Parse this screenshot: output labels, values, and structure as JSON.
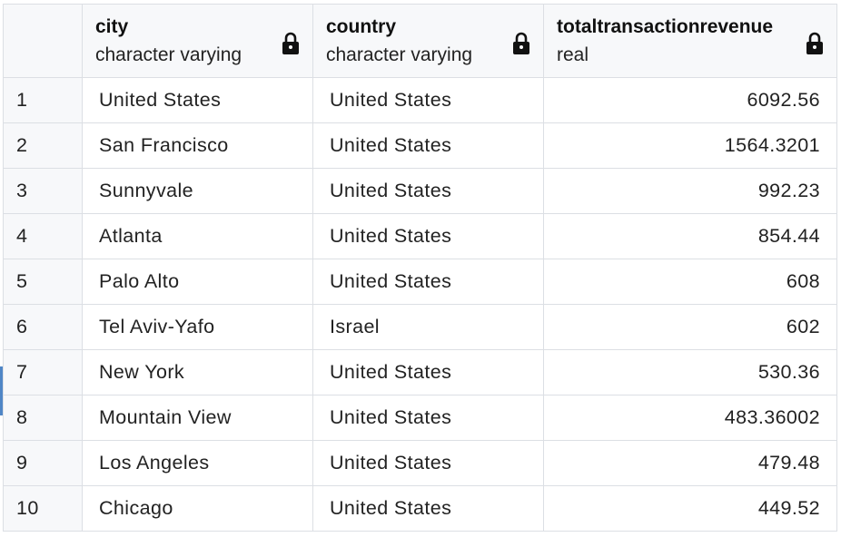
{
  "columns": [
    {
      "name": "city",
      "type": "character varying"
    },
    {
      "name": "country",
      "type": "character varying"
    },
    {
      "name": "totaltransactionrevenue",
      "type": "real"
    }
  ],
  "rows": [
    {
      "num": "1",
      "city": "United States",
      "country": "United States",
      "revenue": "6092.56"
    },
    {
      "num": "2",
      "city": "San Francisco",
      "country": "United States",
      "revenue": "1564.3201"
    },
    {
      "num": "3",
      "city": "Sunnyvale",
      "country": "United States",
      "revenue": "992.23"
    },
    {
      "num": "4",
      "city": "Atlanta",
      "country": "United States",
      "revenue": "854.44"
    },
    {
      "num": "5",
      "city": "Palo Alto",
      "country": "United States",
      "revenue": "608"
    },
    {
      "num": "6",
      "city": "Tel Aviv-Yafo",
      "country": "Israel",
      "revenue": "602"
    },
    {
      "num": "7",
      "city": "New York",
      "country": "United States",
      "revenue": "530.36"
    },
    {
      "num": "8",
      "city": "Mountain View",
      "country": "United States",
      "revenue": "483.36002"
    },
    {
      "num": "9",
      "city": "Los Angeles",
      "country": "United States",
      "revenue": "479.48"
    },
    {
      "num": "10",
      "city": "Chicago",
      "country": "United States",
      "revenue": "449.52"
    }
  ],
  "icons": {
    "column_lock": "lock-icon"
  },
  "colors": {
    "header_bg": "#f7f8fa",
    "grid_line": "#dcdfe4",
    "selection_marker": "#4f86c6"
  }
}
